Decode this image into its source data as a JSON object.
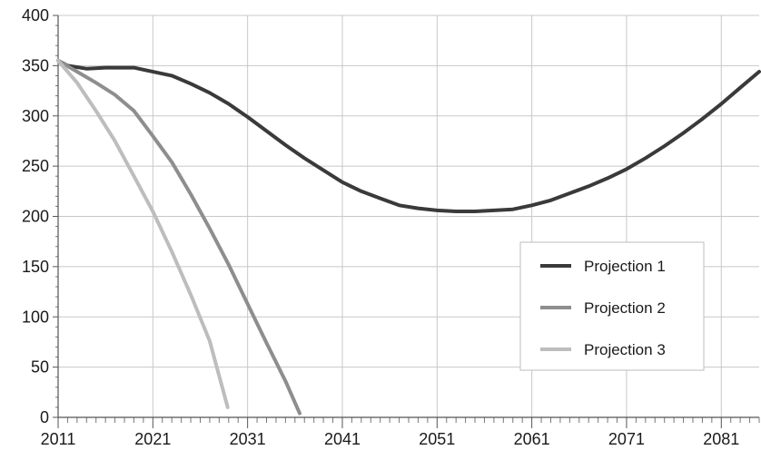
{
  "chart_data": {
    "type": "line",
    "title": "",
    "xlabel": "",
    "ylabel": "",
    "xlim": [
      2011,
      2085
    ],
    "ylim": [
      0,
      400
    ],
    "x_ticks": [
      2011,
      2021,
      2031,
      2041,
      2051,
      2061,
      2071,
      2081
    ],
    "y_ticks": [
      0,
      50,
      100,
      150,
      200,
      250,
      300,
      350,
      400
    ],
    "grid": true,
    "legend_position": "right",
    "series": [
      {
        "name": "Projection 1",
        "color": "#3a3a3a",
        "points": [
          [
            2011,
            355
          ],
          [
            2012,
            350
          ],
          [
            2014,
            347
          ],
          [
            2016,
            348
          ],
          [
            2019,
            348
          ],
          [
            2020,
            346
          ],
          [
            2023,
            340
          ],
          [
            2025,
            332
          ],
          [
            2027,
            323
          ],
          [
            2029,
            312
          ],
          [
            2031,
            299
          ],
          [
            2033,
            285
          ],
          [
            2035,
            271
          ],
          [
            2037,
            258
          ],
          [
            2039,
            246
          ],
          [
            2041,
            234
          ],
          [
            2043,
            225
          ],
          [
            2045,
            218
          ],
          [
            2047,
            211
          ],
          [
            2049,
            208
          ],
          [
            2051,
            206
          ],
          [
            2053,
            205
          ],
          [
            2055,
            205
          ],
          [
            2057,
            206
          ],
          [
            2059,
            207
          ],
          [
            2061,
            211
          ],
          [
            2063,
            216
          ],
          [
            2065,
            223
          ],
          [
            2067,
            230
          ],
          [
            2069,
            238
          ],
          [
            2071,
            247
          ],
          [
            2073,
            258
          ],
          [
            2075,
            270
          ],
          [
            2077,
            283
          ],
          [
            2079,
            297
          ],
          [
            2081,
            312
          ],
          [
            2083,
            328
          ],
          [
            2085,
            344
          ]
        ]
      },
      {
        "name": "Projection 2",
        "color": "#8e8e8e",
        "points": [
          [
            2011,
            355
          ],
          [
            2013,
            344
          ],
          [
            2015,
            333
          ],
          [
            2017,
            321
          ],
          [
            2019,
            305
          ],
          [
            2021,
            280
          ],
          [
            2023,
            254
          ],
          [
            2025,
            222
          ],
          [
            2027,
            188
          ],
          [
            2029,
            152
          ],
          [
            2031,
            113
          ],
          [
            2033,
            74
          ],
          [
            2035,
            36
          ],
          [
            2036.5,
            4
          ]
        ]
      },
      {
        "name": "Projection 3",
        "color": "#bdbdbd",
        "points": [
          [
            2011,
            355
          ],
          [
            2013,
            333
          ],
          [
            2015,
            305
          ],
          [
            2017,
            275
          ],
          [
            2019,
            240
          ],
          [
            2021,
            205
          ],
          [
            2023,
            165
          ],
          [
            2025,
            122
          ],
          [
            2027,
            76
          ],
          [
            2028.9,
            10
          ]
        ]
      }
    ]
  }
}
